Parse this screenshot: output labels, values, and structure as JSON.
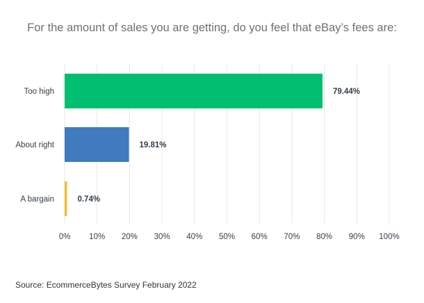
{
  "chart_data": {
    "type": "bar",
    "orientation": "horizontal",
    "title": "For the amount of sales you are getting, do you feel that eBay’s fees are:",
    "categories": [
      "Too high",
      "About right",
      "A bargain"
    ],
    "values": [
      79.44,
      19.81,
      0.74
    ],
    "value_labels": [
      "79.44%",
      "19.81%",
      "0.74%"
    ],
    "colors": [
      "#00bf6f",
      "#3f7bbd",
      "#f0be2c"
    ],
    "xlim": [
      0,
      100
    ],
    "xticks": [
      "0%",
      "10%",
      "20%",
      "30%",
      "40%",
      "50%",
      "60%",
      "70%",
      "80%",
      "90%",
      "100%"
    ],
    "grid": true
  },
  "source": "Source: EcommerceBytes Survey February 2022"
}
